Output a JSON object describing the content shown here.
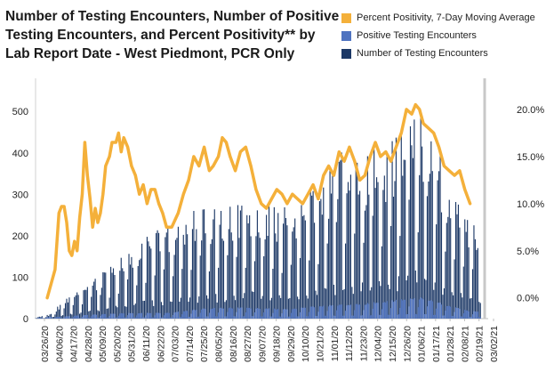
{
  "chart_data": {
    "type": "bar",
    "title": "Number of Testing Encounters, Number of Positive Testing Encounters, and Percent Positivity** by Lab Report Date - West Piedmont, PCR Only",
    "xlabel": "",
    "ylabel": "",
    "ylim": [
      0,
      580
    ],
    "y2lim": [
      -0.022,
      0.233
    ],
    "yticks": [
      0,
      100,
      200,
      300,
      400,
      500
    ],
    "y2ticks": [
      0.0,
      0.05,
      0.1,
      0.15,
      0.2
    ],
    "y2tick_labels": [
      "0.0%",
      "5.0%",
      "10.0%",
      "15.0%",
      "20.0%"
    ],
    "x_start": "2020-03-22",
    "x_end": "2021-03-06",
    "xtick_labels": [
      "03/26/20",
      "04/06/20",
      "04/17/20",
      "04/28/20",
      "05/09/20",
      "05/20/20",
      "05/31/20",
      "06/11/20",
      "06/22/20",
      "07/03/20",
      "07/14/20",
      "07/25/20",
      "08/05/20",
      "08/16/20",
      "08/27/20",
      "09/07/20",
      "09/18/20",
      "09/29/20",
      "10/10/20",
      "10/21/20",
      "11/01/20",
      "11/12/20",
      "11/23/20",
      "12/04/20",
      "12/15/20",
      "12/26/20",
      "01/06/21",
      "01/17/21",
      "01/28/21",
      "02/08/21",
      "02/19/21",
      "03/02/21"
    ],
    "legend_position": "top-right",
    "grid": false,
    "series": [
      {
        "name": "Percent Positivity, 7-Day Moving Average",
        "type": "line",
        "axis": "right",
        "color": "#f4b03a",
        "points": [
          [
            "2020-03-31",
            0.0
          ],
          [
            "2020-04-03",
            0.015
          ],
          [
            "2020-04-06",
            0.03
          ],
          [
            "2020-04-09",
            0.09
          ],
          [
            "2020-04-11",
            0.097
          ],
          [
            "2020-04-13",
            0.097
          ],
          [
            "2020-04-15",
            0.08
          ],
          [
            "2020-04-17",
            0.05
          ],
          [
            "2020-04-19",
            0.045
          ],
          [
            "2020-04-21",
            0.06
          ],
          [
            "2020-04-23",
            0.05
          ],
          [
            "2020-04-25",
            0.085
          ],
          [
            "2020-04-27",
            0.11
          ],
          [
            "2020-04-29",
            0.165
          ],
          [
            "2020-05-01",
            0.13
          ],
          [
            "2020-05-03",
            0.105
          ],
          [
            "2020-05-05",
            0.075
          ],
          [
            "2020-05-07",
            0.095
          ],
          [
            "2020-05-09",
            0.08
          ],
          [
            "2020-05-11",
            0.09
          ],
          [
            "2020-05-13",
            0.11
          ],
          [
            "2020-05-15",
            0.14
          ],
          [
            "2020-05-18",
            0.15
          ],
          [
            "2020-05-20",
            0.165
          ],
          [
            "2020-05-23",
            0.165
          ],
          [
            "2020-05-25",
            0.175
          ],
          [
            "2020-05-27",
            0.155
          ],
          [
            "2020-05-29",
            0.17
          ],
          [
            "2020-06-01",
            0.16
          ],
          [
            "2020-06-04",
            0.14
          ],
          [
            "2020-06-07",
            0.13
          ],
          [
            "2020-06-10",
            0.11
          ],
          [
            "2020-06-13",
            0.12
          ],
          [
            "2020-06-16",
            0.1
          ],
          [
            "2020-06-19",
            0.115
          ],
          [
            "2020-06-22",
            0.115
          ],
          [
            "2020-06-25",
            0.1
          ],
          [
            "2020-06-28",
            0.09
          ],
          [
            "2020-07-01",
            0.075
          ],
          [
            "2020-07-05",
            0.075
          ],
          [
            "2020-07-10",
            0.09
          ],
          [
            "2020-07-14",
            0.11
          ],
          [
            "2020-07-18",
            0.125
          ],
          [
            "2020-07-22",
            0.15
          ],
          [
            "2020-07-26",
            0.14
          ],
          [
            "2020-07-30",
            0.16
          ],
          [
            "2020-08-03",
            0.135
          ],
          [
            "2020-08-06",
            0.14
          ],
          [
            "2020-08-10",
            0.15
          ],
          [
            "2020-08-13",
            0.17
          ],
          [
            "2020-08-16",
            0.165
          ],
          [
            "2020-08-19",
            0.15
          ],
          [
            "2020-08-23",
            0.135
          ],
          [
            "2020-08-27",
            0.155
          ],
          [
            "2020-08-31",
            0.16
          ],
          [
            "2020-09-04",
            0.14
          ],
          [
            "2020-09-08",
            0.115
          ],
          [
            "2020-09-12",
            0.1
          ],
          [
            "2020-09-16",
            0.095
          ],
          [
            "2020-09-20",
            0.105
          ],
          [
            "2020-09-24",
            0.115
          ],
          [
            "2020-09-28",
            0.11
          ],
          [
            "2020-10-02",
            0.1
          ],
          [
            "2020-10-06",
            0.11
          ],
          [
            "2020-10-10",
            0.105
          ],
          [
            "2020-10-14",
            0.1
          ],
          [
            "2020-10-18",
            0.11
          ],
          [
            "2020-10-22",
            0.12
          ],
          [
            "2020-10-26",
            0.105
          ],
          [
            "2020-10-30",
            0.13
          ],
          [
            "2020-11-03",
            0.14
          ],
          [
            "2020-11-07",
            0.13
          ],
          [
            "2020-11-11",
            0.155
          ],
          [
            "2020-11-15",
            0.145
          ],
          [
            "2020-11-19",
            0.16
          ],
          [
            "2020-11-23",
            0.145
          ],
          [
            "2020-11-27",
            0.125
          ],
          [
            "2020-12-01",
            0.13
          ],
          [
            "2020-12-05",
            0.15
          ],
          [
            "2020-12-09",
            0.165
          ],
          [
            "2020-12-13",
            0.15
          ],
          [
            "2020-12-17",
            0.155
          ],
          [
            "2020-12-21",
            0.145
          ],
          [
            "2020-12-25",
            0.16
          ],
          [
            "2020-12-29",
            0.175
          ],
          [
            "2021-01-02",
            0.2
          ],
          [
            "2021-01-06",
            0.195
          ],
          [
            "2021-01-09",
            0.205
          ],
          [
            "2021-01-12",
            0.2
          ],
          [
            "2021-01-15",
            0.185
          ],
          [
            "2021-01-19",
            0.18
          ],
          [
            "2021-01-23",
            0.175
          ],
          [
            "2021-01-27",
            0.16
          ],
          [
            "2021-01-31",
            0.14
          ],
          [
            "2021-02-04",
            0.135
          ],
          [
            "2021-02-08",
            0.13
          ],
          [
            "2021-02-12",
            0.135
          ],
          [
            "2021-02-16",
            0.115
          ],
          [
            "2021-02-20",
            0.1
          ]
        ]
      },
      {
        "name": "Positive Testing Encounters",
        "type": "bar",
        "axis": "left",
        "color": "#4f73c0",
        "points": [
          [
            "2020-04-10",
            4
          ],
          [
            "2020-05-01",
            8
          ],
          [
            "2020-06-01",
            12
          ],
          [
            "2020-07-01",
            12
          ],
          [
            "2020-08-01",
            22
          ],
          [
            "2020-09-01",
            24
          ],
          [
            "2020-10-01",
            20
          ],
          [
            "2020-11-01",
            28
          ],
          [
            "2020-12-01",
            32
          ],
          [
            "2021-01-01",
            42
          ],
          [
            "2021-01-15",
            45
          ],
          [
            "2021-02-01",
            30
          ],
          [
            "2021-02-20",
            16
          ]
        ]
      },
      {
        "name": "Number of Testing Encounters",
        "type": "bar",
        "axis": "left",
        "color": "#1c3866",
        "points": [
          [
            "2020-03-22",
            2
          ],
          [
            "2020-04-01",
            8
          ],
          [
            "2020-04-15",
            40
          ],
          [
            "2020-05-01",
            70
          ],
          [
            "2020-05-15",
            100
          ],
          [
            "2020-06-01",
            135
          ],
          [
            "2020-06-15",
            165
          ],
          [
            "2020-07-01",
            185
          ],
          [
            "2020-07-15",
            205
          ],
          [
            "2020-08-01",
            230
          ],
          [
            "2020-08-15",
            215
          ],
          [
            "2020-09-01",
            255
          ],
          [
            "2020-09-15",
            235
          ],
          [
            "2020-10-01",
            225
          ],
          [
            "2020-10-15",
            235
          ],
          [
            "2020-11-01",
            295
          ],
          [
            "2020-11-15",
            355
          ],
          [
            "2020-12-01",
            330
          ],
          [
            "2020-12-15",
            355
          ],
          [
            "2021-01-01",
            400
          ],
          [
            "2021-01-10",
            440
          ],
          [
            "2021-01-20",
            400
          ],
          [
            "2021-02-01",
            300
          ],
          [
            "2021-02-15",
            225
          ],
          [
            "2021-02-28",
            200
          ]
        ]
      }
    ]
  }
}
